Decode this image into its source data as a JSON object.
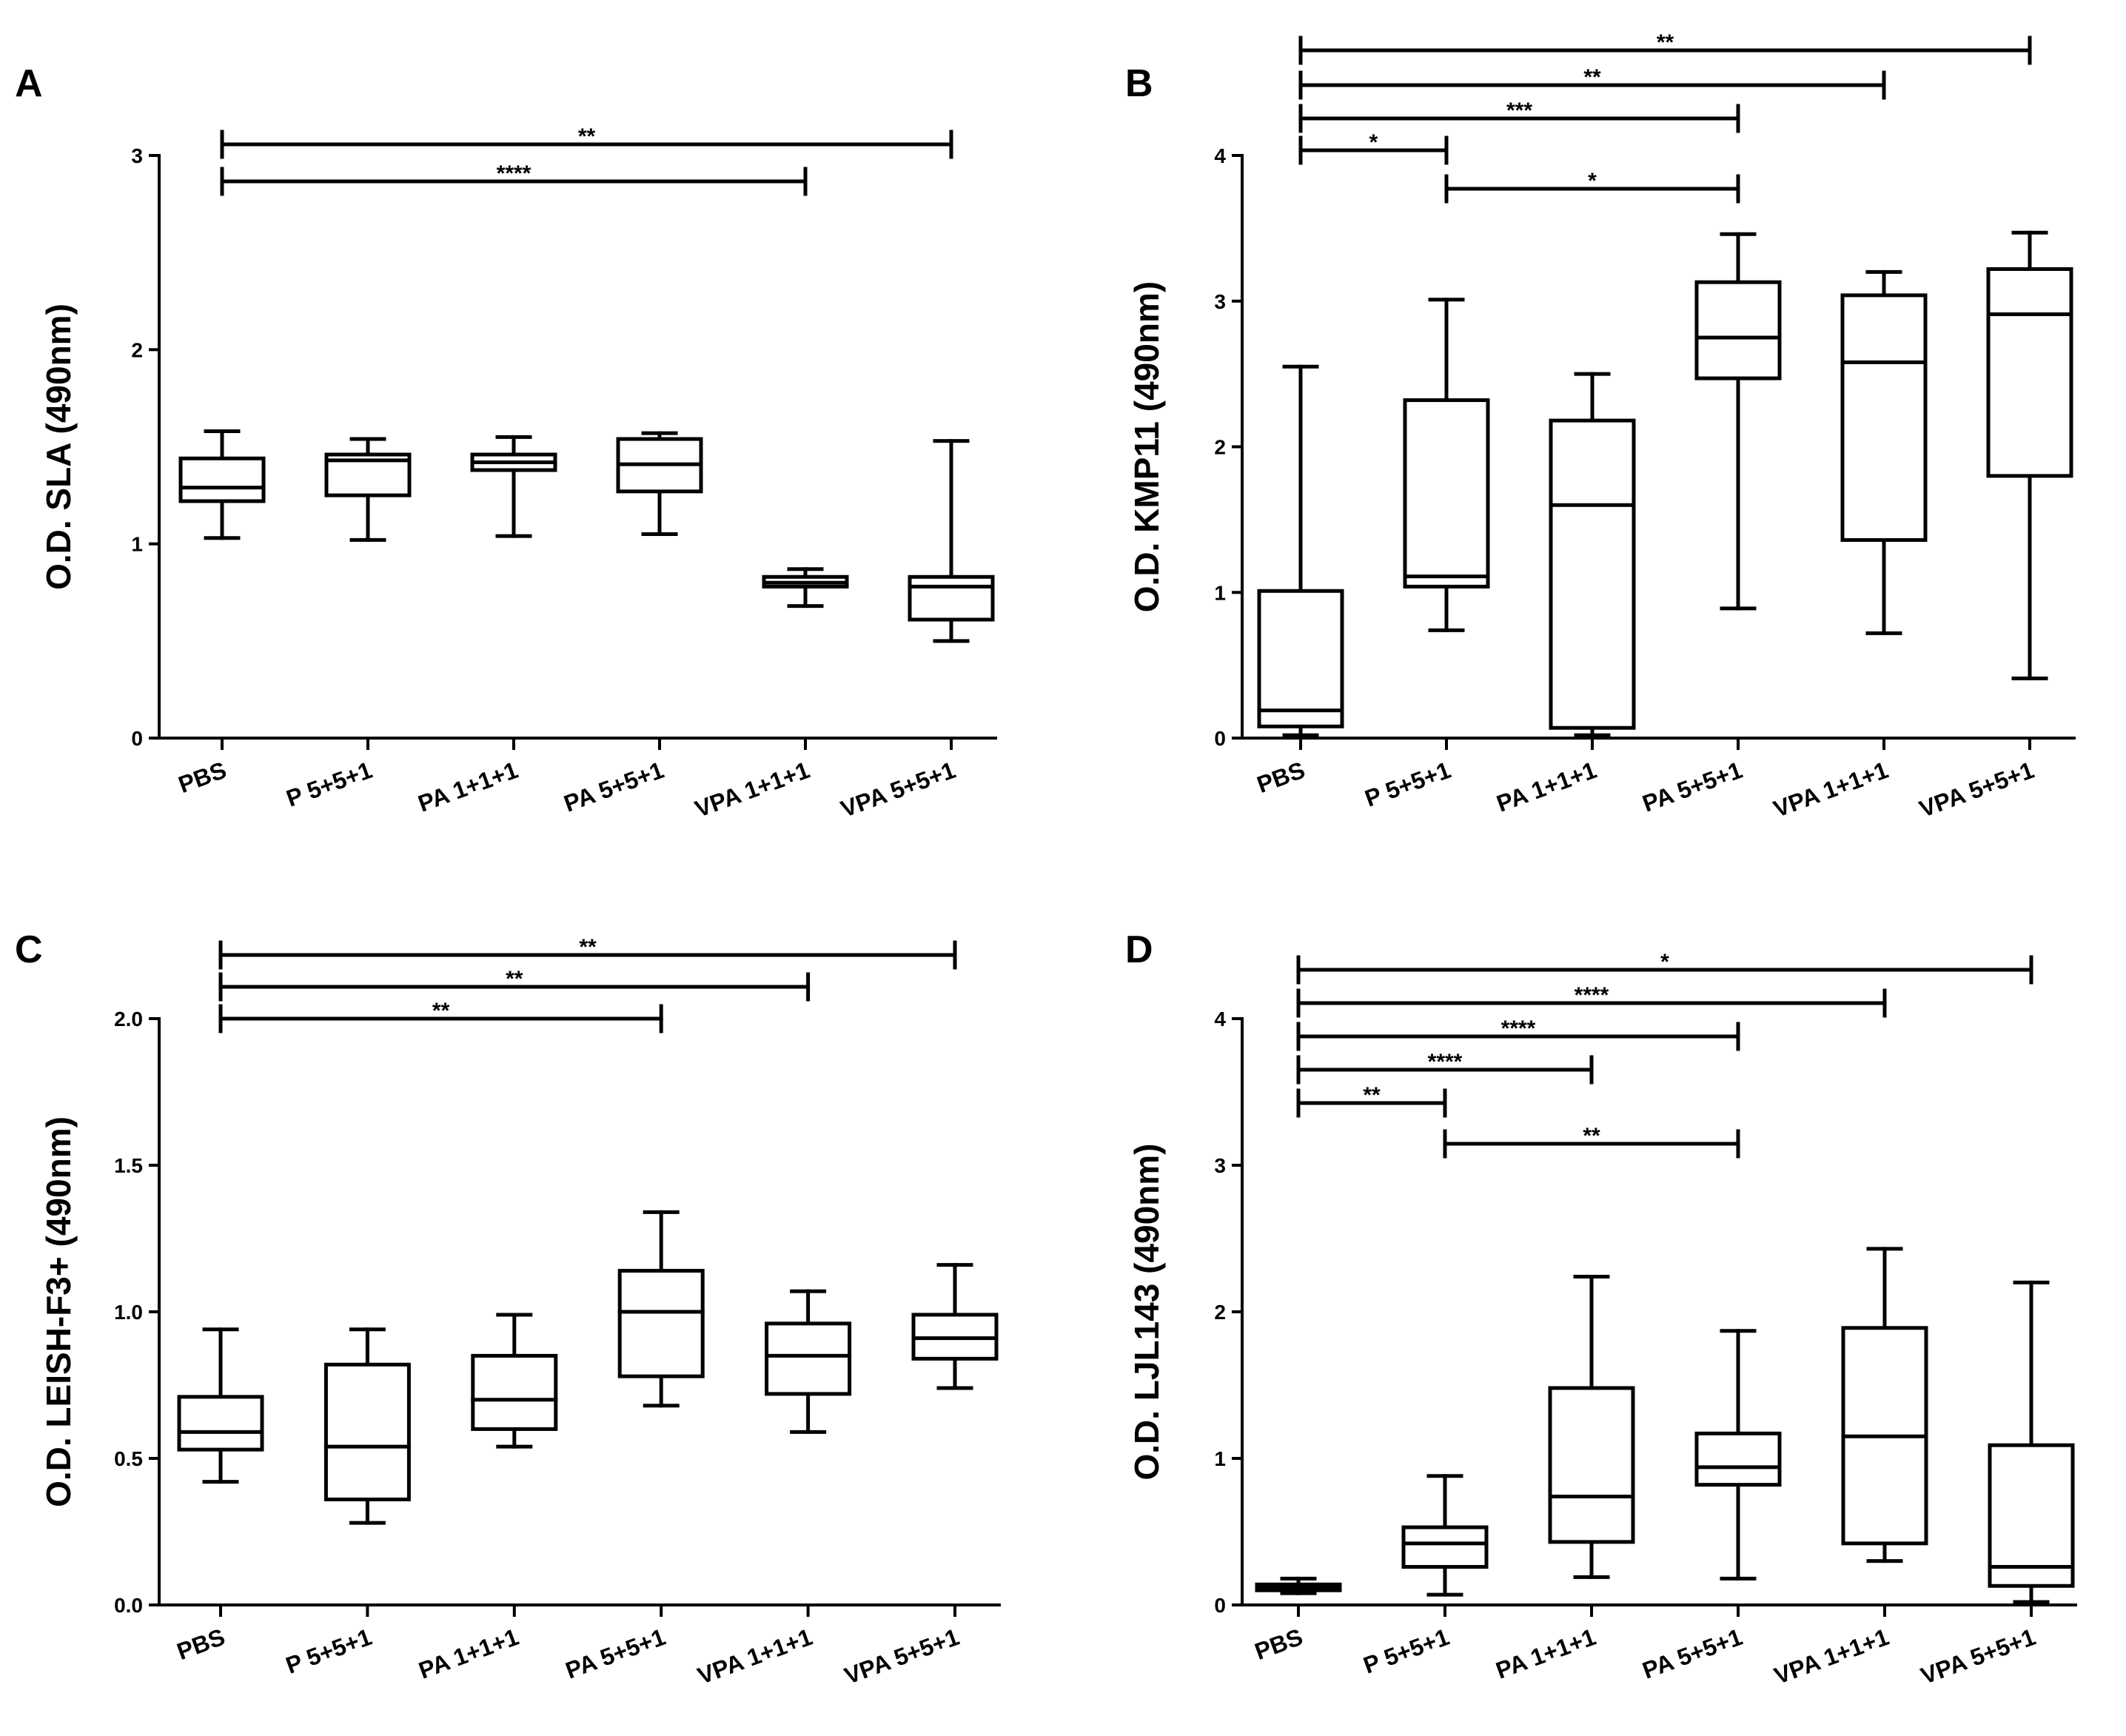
{
  "chart_data": [
    {
      "type": "box",
      "panel": "A",
      "ylabel": "O.D. SLA (490nm)",
      "ylim": [
        0,
        3
      ],
      "yticks": [
        0,
        1,
        2,
        3
      ],
      "ytick_labels": [
        "0",
        "1",
        "2",
        "3"
      ],
      "categories": [
        "PBS",
        "P 5+5+1",
        "PA 1+1+1",
        "PA 5+5+1",
        "VPA 1+1+1",
        "VPA 5+5+1"
      ],
      "boxes": [
        {
          "min": 1.03,
          "q1": 1.22,
          "median": 1.29,
          "q3": 1.44,
          "max": 1.58
        },
        {
          "min": 1.02,
          "q1": 1.25,
          "median": 1.43,
          "q3": 1.46,
          "max": 1.54
        },
        {
          "min": 1.04,
          "q1": 1.38,
          "median": 1.42,
          "q3": 1.46,
          "max": 1.55
        },
        {
          "min": 1.05,
          "q1": 1.27,
          "median": 1.41,
          "q3": 1.54,
          "max": 1.57
        },
        {
          "min": 0.68,
          "q1": 0.78,
          "median": 0.8,
          "q3": 0.83,
          "max": 0.87
        },
        {
          "min": 0.5,
          "q1": 0.61,
          "median": 0.78,
          "q3": 0.83,
          "max": 1.53
        }
      ],
      "significance": [
        {
          "from": 0,
          "to": 5,
          "label": "**"
        },
        {
          "from": 0,
          "to": 4,
          "label": "****"
        }
      ]
    },
    {
      "type": "box",
      "panel": "B",
      "ylabel": "O.D. KMP11 (490nm)",
      "ylim": [
        0,
        4
      ],
      "yticks": [
        0,
        1,
        2,
        3,
        4
      ],
      "ytick_labels": [
        "0",
        "1",
        "2",
        "3",
        "4"
      ],
      "categories": [
        "PBS",
        "P 5+5+1",
        "PA 1+1+1",
        "PA 5+5+1",
        "VPA 1+1+1",
        "VPA 5+5+1"
      ],
      "boxes": [
        {
          "min": 0.02,
          "q1": 0.08,
          "median": 0.19,
          "q3": 1.01,
          "max": 2.55
        },
        {
          "min": 0.74,
          "q1": 1.04,
          "median": 1.11,
          "q3": 2.32,
          "max": 3.01
        },
        {
          "min": 0.02,
          "q1": 0.07,
          "median": 1.6,
          "q3": 2.18,
          "max": 2.5
        },
        {
          "min": 0.89,
          "q1": 2.47,
          "median": 2.75,
          "q3": 3.13,
          "max": 3.46
        },
        {
          "min": 0.72,
          "q1": 1.36,
          "median": 2.58,
          "q3": 3.04,
          "max": 3.2
        },
        {
          "min": 0.41,
          "q1": 1.8,
          "median": 2.91,
          "q3": 3.22,
          "max": 3.47
        }
      ],
      "significance": [
        {
          "from": 0,
          "to": 5,
          "label": "**"
        },
        {
          "from": 0,
          "to": 4,
          "label": "**"
        },
        {
          "from": 0,
          "to": 3,
          "label": "***"
        },
        {
          "from": 0,
          "to": 1,
          "label": "*"
        },
        {
          "from": 1,
          "to": 3,
          "label": "*"
        }
      ]
    },
    {
      "type": "box",
      "panel": "C",
      "ylabel": "O.D. LEISH-F3+ (490nm)",
      "ylim": [
        0,
        2
      ],
      "yticks": [
        0,
        0.5,
        1,
        1.5,
        2
      ],
      "ytick_labels": [
        "0.0",
        "0.5",
        "1.0",
        "1.5",
        "2.0"
      ],
      "categories": [
        "PBS",
        "P 5+5+1",
        "PA 1+1+1",
        "PA 5+5+1",
        "VPA 1+1+1",
        "VPA 5+5+1"
      ],
      "boxes": [
        {
          "min": 0.42,
          "q1": 0.53,
          "median": 0.59,
          "q3": 0.71,
          "max": 0.94
        },
        {
          "min": 0.28,
          "q1": 0.36,
          "median": 0.54,
          "q3": 0.82,
          "max": 0.94
        },
        {
          "min": 0.54,
          "q1": 0.6,
          "median": 0.7,
          "q3": 0.85,
          "max": 0.99
        },
        {
          "min": 0.68,
          "q1": 0.78,
          "median": 1.0,
          "q3": 1.14,
          "max": 1.34
        },
        {
          "min": 0.59,
          "q1": 0.72,
          "median": 0.85,
          "q3": 0.96,
          "max": 1.07
        },
        {
          "min": 0.74,
          "q1": 0.84,
          "median": 0.91,
          "q3": 0.99,
          "max": 1.16
        }
      ],
      "significance": [
        {
          "from": 0,
          "to": 5,
          "label": "**"
        },
        {
          "from": 0,
          "to": 4,
          "label": "**"
        },
        {
          "from": 0,
          "to": 3,
          "label": "**"
        }
      ]
    },
    {
      "type": "box",
      "panel": "D",
      "ylabel": "O.D. LJL143 (490nm)",
      "ylim": [
        0,
        4
      ],
      "yticks": [
        0,
        1,
        2,
        3,
        4
      ],
      "ytick_labels": [
        "0",
        "1",
        "2",
        "3",
        "4"
      ],
      "categories": [
        "PBS",
        "P 5+5+1",
        "PA 1+1+1",
        "PA 5+5+1",
        "VPA 1+1+1",
        "VPA 5+5+1"
      ],
      "boxes": [
        {
          "min": 0.08,
          "q1": 0.1,
          "median": 0.12,
          "q3": 0.14,
          "max": 0.18
        },
        {
          "min": 0.07,
          "q1": 0.26,
          "median": 0.42,
          "q3": 0.53,
          "max": 0.88
        },
        {
          "min": 0.19,
          "q1": 0.43,
          "median": 0.74,
          "q3": 1.48,
          "max": 2.24
        },
        {
          "min": 0.18,
          "q1": 0.82,
          "median": 0.94,
          "q3": 1.17,
          "max": 1.87
        },
        {
          "min": 0.3,
          "q1": 0.42,
          "median": 1.15,
          "q3": 1.89,
          "max": 2.43
        },
        {
          "min": 0.02,
          "q1": 0.13,
          "median": 0.26,
          "q3": 1.09,
          "max": 2.2
        }
      ],
      "significance": [
        {
          "from": 0,
          "to": 5,
          "label": "*"
        },
        {
          "from": 0,
          "to": 4,
          "label": "****"
        },
        {
          "from": 0,
          "to": 3,
          "label": "****"
        },
        {
          "from": 0,
          "to": 2,
          "label": "****"
        },
        {
          "from": 0,
          "to": 1,
          "label": "**"
        },
        {
          "from": 1,
          "to": 3,
          "label": "**"
        }
      ]
    }
  ]
}
